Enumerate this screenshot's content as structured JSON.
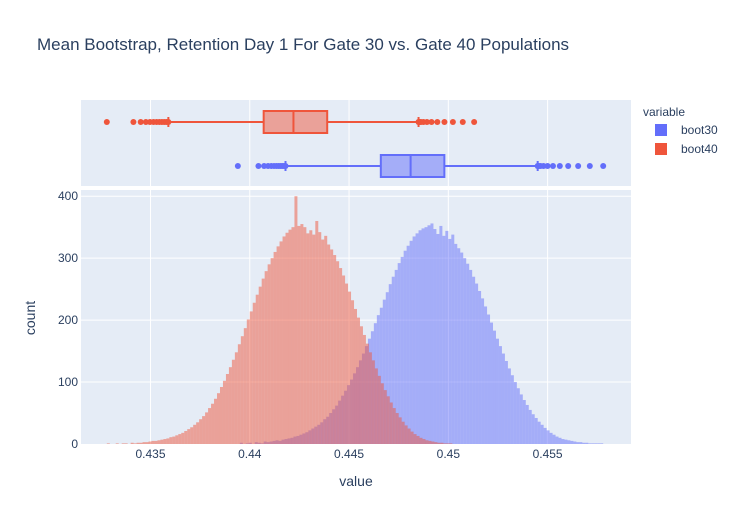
{
  "chart_data": {
    "type": "histogram",
    "title": "Mean Bootstrap, Retention Day 1 For Gate 30 vs. Gate 40 Populations",
    "xlabel": "value",
    "ylabel": "count",
    "xlim": [
      0.4315,
      0.4592
    ],
    "ylim": [
      0,
      410
    ],
    "x_ticks": [
      "0.435",
      "0.44",
      "0.445",
      "0.45",
      "0.455"
    ],
    "x_tick_values": [
      0.435,
      0.44,
      0.445,
      0.45,
      0.455
    ],
    "y_ticks": [
      "0",
      "100",
      "200",
      "300",
      "400"
    ],
    "y_tick_values": [
      0,
      100,
      200,
      300,
      400
    ],
    "grid": true,
    "legend": {
      "title": "variable",
      "position": "right"
    },
    "series": [
      {
        "name": "boot30",
        "color": "#636efa",
        "bin_start": 0.4395,
        "bin_width": 0.00015,
        "counts": [
          2,
          0,
          1,
          2,
          0,
          3,
          2,
          1,
          4,
          3,
          4,
          5,
          6,
          5,
          7,
          8,
          9,
          10,
          12,
          13,
          15,
          17,
          19,
          22,
          25,
          28,
          31,
          35,
          40,
          44,
          50,
          56,
          62,
          70,
          78,
          86,
          95,
          104,
          114,
          124,
          135,
          146,
          158,
          170,
          182,
          195,
          208,
          220,
          233,
          245,
          258,
          270,
          281,
          292,
          302,
          312,
          320,
          328,
          335,
          340,
          345,
          348,
          350,
          353,
          356,
          347,
          339,
          352,
          336,
          344,
          331,
          338,
          323,
          316,
          309,
          300,
          291,
          281,
          270,
          259,
          247,
          235,
          222,
          209,
          196,
          183,
          170,
          158,
          146,
          134,
          122,
          111,
          100,
          90,
          80,
          71,
          63,
          55,
          48,
          42,
          36,
          31,
          26,
          22,
          18,
          15,
          12,
          10,
          8,
          7,
          6,
          5,
          4,
          3,
          3,
          2,
          2,
          1,
          1,
          1,
          1,
          1
        ],
        "box": {
          "min": 0.4394,
          "lower_whisker": 0.4418,
          "q1": 0.4466,
          "median": 0.4481,
          "q3": 0.4498,
          "upper_whisker": 0.4545,
          "max": 0.4578
        }
      },
      {
        "name": "boot40",
        "color": "#ef553b",
        "bin_start": 0.4328,
        "bin_width": 0.00015,
        "counts": [
          1,
          0,
          0,
          1,
          0,
          1,
          1,
          0,
          2,
          1,
          2,
          2,
          3,
          3,
          4,
          5,
          5,
          6,
          7,
          8,
          9,
          11,
          12,
          14,
          16,
          18,
          21,
          24,
          27,
          31,
          35,
          40,
          45,
          51,
          58,
          65,
          73,
          82,
          92,
          102,
          113,
          124,
          136,
          148,
          161,
          174,
          187,
          201,
          214,
          228,
          241,
          254,
          267,
          279,
          290,
          300,
          310,
          319,
          327,
          335,
          341,
          346,
          350,
          400,
          352,
          355,
          350,
          340,
          345,
          338,
          360,
          342,
          330,
          336,
          322,
          314,
          305,
          295,
          284,
          272,
          259,
          246,
          232,
          218,
          204,
          190,
          176,
          162,
          148,
          135,
          122,
          110,
          98,
          87,
          77,
          67,
          58,
          50,
          43,
          36,
          30,
          25,
          20,
          16,
          13,
          10,
          8,
          6,
          5,
          4,
          3,
          2,
          2,
          1,
          1,
          1
        ],
        "box": {
          "min": 0.4328,
          "lower_whisker": 0.4359,
          "q1": 0.4407,
          "median": 0.4422,
          "q3": 0.4439,
          "upper_whisker": 0.4485,
          "max": 0.4513
        }
      }
    ]
  }
}
